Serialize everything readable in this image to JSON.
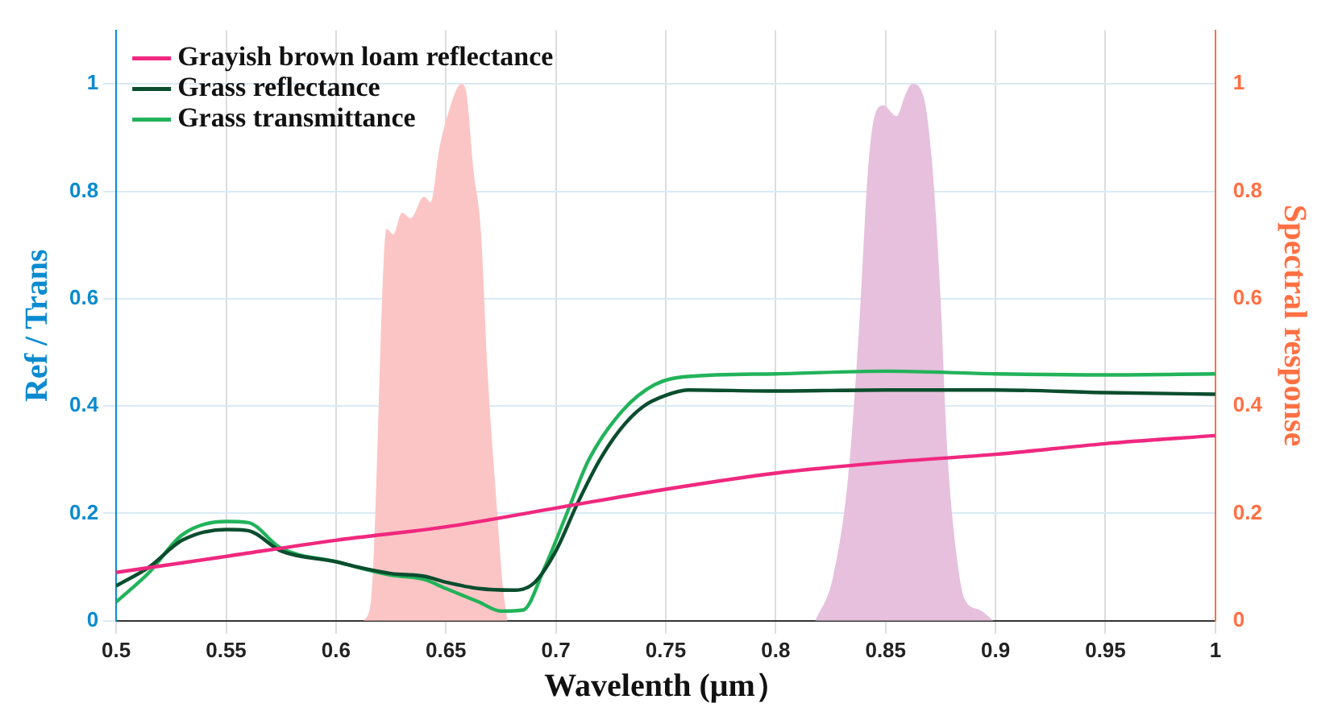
{
  "chart_data": {
    "type": "line",
    "xlabel": "Wavelenth (μm）",
    "ylabel": "Ref / Trans",
    "y2label": "Spectral response",
    "xlim": [
      0.5,
      1
    ],
    "xticks": [
      0.5,
      0.55,
      0.6,
      0.65,
      0.7,
      0.75,
      0.8,
      0.85,
      0.9,
      0.95,
      1
    ],
    "ylim": [
      0,
      1.1
    ],
    "yticks": [
      0,
      0.2,
      0.4,
      0.6,
      0.8,
      1
    ],
    "y2lim": [
      0,
      1.1
    ],
    "y2ticks": [
      0,
      0.2,
      0.4,
      0.6,
      0.8,
      1
    ],
    "grid": true,
    "legend": "top left",
    "marker": "none",
    "line_style": "solid",
    "series": [
      {
        "type": "area",
        "axis": "y2",
        "color": "#fcc5c5",
        "x": [
          0.6125,
          0.616,
          0.623,
          0.626,
          0.63,
          0.634,
          0.64,
          0.643,
          0.647,
          0.651,
          0.657,
          0.659,
          0.6625,
          0.666,
          0.669,
          0.673,
          0.676,
          0.678
        ],
        "values": [
          0,
          0.04,
          0.73,
          0.72,
          0.76,
          0.75,
          0.79,
          0.78,
          0.88,
          0.945,
          1.0,
          0.99,
          0.84,
          0.72,
          0.46,
          0.22,
          0.06,
          0
        ]
      },
      {
        "type": "area",
        "axis": "y2",
        "color": "#e6c0dc",
        "x": [
          0.818,
          0.826,
          0.833,
          0.838,
          0.842,
          0.845,
          0.849,
          0.855,
          0.859,
          0.862,
          0.867,
          0.871,
          0.875,
          0.878,
          0.883,
          0.886,
          0.893,
          0.899
        ],
        "values": [
          0,
          0.08,
          0.27,
          0.55,
          0.84,
          0.94,
          0.96,
          0.94,
          0.98,
          1.0,
          0.98,
          0.86,
          0.6,
          0.32,
          0.1,
          0.04,
          0.02,
          0
        ]
      },
      {
        "name": "Grayish brown loam reflectance",
        "color": "#f0287f",
        "x": [
          0.5,
          0.55,
          0.6,
          0.65,
          0.7,
          0.75,
          0.8,
          0.85,
          0.9,
          0.95,
          1.0
        ],
        "values": [
          0.09,
          0.12,
          0.15,
          0.175,
          0.21,
          0.245,
          0.275,
          0.295,
          0.31,
          0.33,
          0.345
        ]
      },
      {
        "name": "Grass reflectance",
        "color": "#0b4d2e",
        "x": [
          0.5,
          0.515,
          0.53,
          0.55,
          0.56,
          0.575,
          0.6,
          0.61,
          0.625,
          0.64,
          0.65,
          0.665,
          0.68,
          0.69,
          0.7,
          0.71,
          0.72,
          0.73,
          0.74,
          0.75,
          0.76,
          0.8,
          0.85,
          0.9,
          0.95,
          1.0
        ],
        "values": [
          0.065,
          0.1,
          0.15,
          0.17,
          0.168,
          0.13,
          0.11,
          0.1,
          0.088,
          0.083,
          0.072,
          0.06,
          0.057,
          0.07,
          0.13,
          0.22,
          0.3,
          0.36,
          0.4,
          0.42,
          0.43,
          0.428,
          0.43,
          0.43,
          0.425,
          0.422
        ]
      },
      {
        "name": "Grass transmittance",
        "color": "#22b35a",
        "x": [
          0.5,
          0.515,
          0.53,
          0.55,
          0.56,
          0.575,
          0.6,
          0.625,
          0.64,
          0.65,
          0.665,
          0.675,
          0.685,
          0.695,
          0.705,
          0.715,
          0.73,
          0.745,
          0.76,
          0.8,
          0.85,
          0.9,
          0.95,
          1.0
        ],
        "values": [
          0.035,
          0.09,
          0.16,
          0.185,
          0.183,
          0.135,
          0.11,
          0.085,
          0.077,
          0.06,
          0.035,
          0.018,
          0.02,
          0.1,
          0.2,
          0.3,
          0.39,
          0.44,
          0.455,
          0.46,
          0.465,
          0.46,
          0.458,
          0.46
        ]
      }
    ]
  }
}
